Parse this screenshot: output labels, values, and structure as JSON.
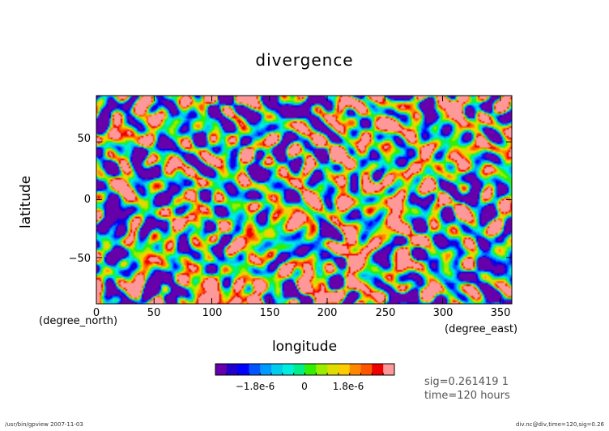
{
  "chart_data": {
    "type": "heatmap",
    "title": "divergence",
    "xlabel": "longitude",
    "ylabel": "latitude",
    "x_unit": "(degree_east)",
    "y_unit": "(degree_north)",
    "xlim": [
      0,
      360
    ],
    "ylim": [
      -90,
      90
    ],
    "x_ticks": [
      "0",
      "50",
      "100",
      "150",
      "200",
      "250",
      "300",
      "350"
    ],
    "y_ticks": [
      "50",
      "0",
      "−50"
    ],
    "colorbar": {
      "levels": 16,
      "tick_labels": [
        "−1.8e-6",
        "0",
        "1.8e-6"
      ],
      "colors": [
        "#6600aa",
        "#2200cc",
        "#0000ff",
        "#0055ff",
        "#0099ff",
        "#00ccee",
        "#00eedd",
        "#00ee88",
        "#33ee00",
        "#99ee00",
        "#dddd00",
        "#ffcc00",
        "#ff8800",
        "#ff5500",
        "#ee0000",
        "#ff9999"
      ]
    }
  },
  "annotations": {
    "sig": "sig=0.261419 1",
    "time": "time=120 hours"
  },
  "footer": {
    "left": "/usr/bin/gpview  2007-11-03",
    "right": "div.nc@div,time=120,sig=0.26"
  }
}
